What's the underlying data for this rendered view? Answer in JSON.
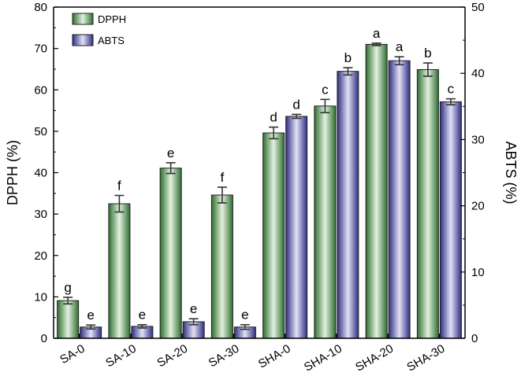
{
  "chart_data": {
    "type": "bar",
    "categories": [
      "SA-0",
      "SA-10",
      "SA-20",
      "SA-30",
      "SHA-0",
      "SHA-10",
      "SHA-20",
      "SHA-30"
    ],
    "series": [
      {
        "name": "DPPH",
        "axis": "left",
        "values": [
          9.1,
          32.5,
          41.1,
          34.6,
          49.6,
          56.1,
          71.0,
          64.9
        ],
        "errors": [
          0.8,
          2.0,
          1.3,
          1.9,
          1.4,
          1.6,
          0.3,
          1.6
        ],
        "letters": [
          "g",
          "f",
          "e",
          "f",
          "d",
          "c",
          "a",
          "b"
        ],
        "color": "#5f9a5f"
      },
      {
        "name": "ABTS",
        "axis": "right",
        "values": [
          1.7,
          1.8,
          2.5,
          1.7,
          33.5,
          40.3,
          41.9,
          35.7
        ],
        "errors": [
          0.3,
          0.25,
          0.45,
          0.35,
          0.3,
          0.55,
          0.6,
          0.45
        ],
        "letters": [
          "e",
          "e",
          "e",
          "e",
          "d",
          "b",
          "a",
          "c"
        ],
        "color": "#5a5aa6"
      }
    ],
    "ylabel": "DPPH (%)",
    "y2label": "ABTS (%)",
    "ylim": [
      0,
      80
    ],
    "y2lim": [
      0,
      50
    ],
    "yticks": [
      0,
      10,
      20,
      30,
      40,
      50,
      60,
      70,
      80
    ],
    "y2ticks": [
      0,
      10,
      20,
      30,
      40,
      50
    ],
    "legend_position": "top-left",
    "grid": false
  }
}
